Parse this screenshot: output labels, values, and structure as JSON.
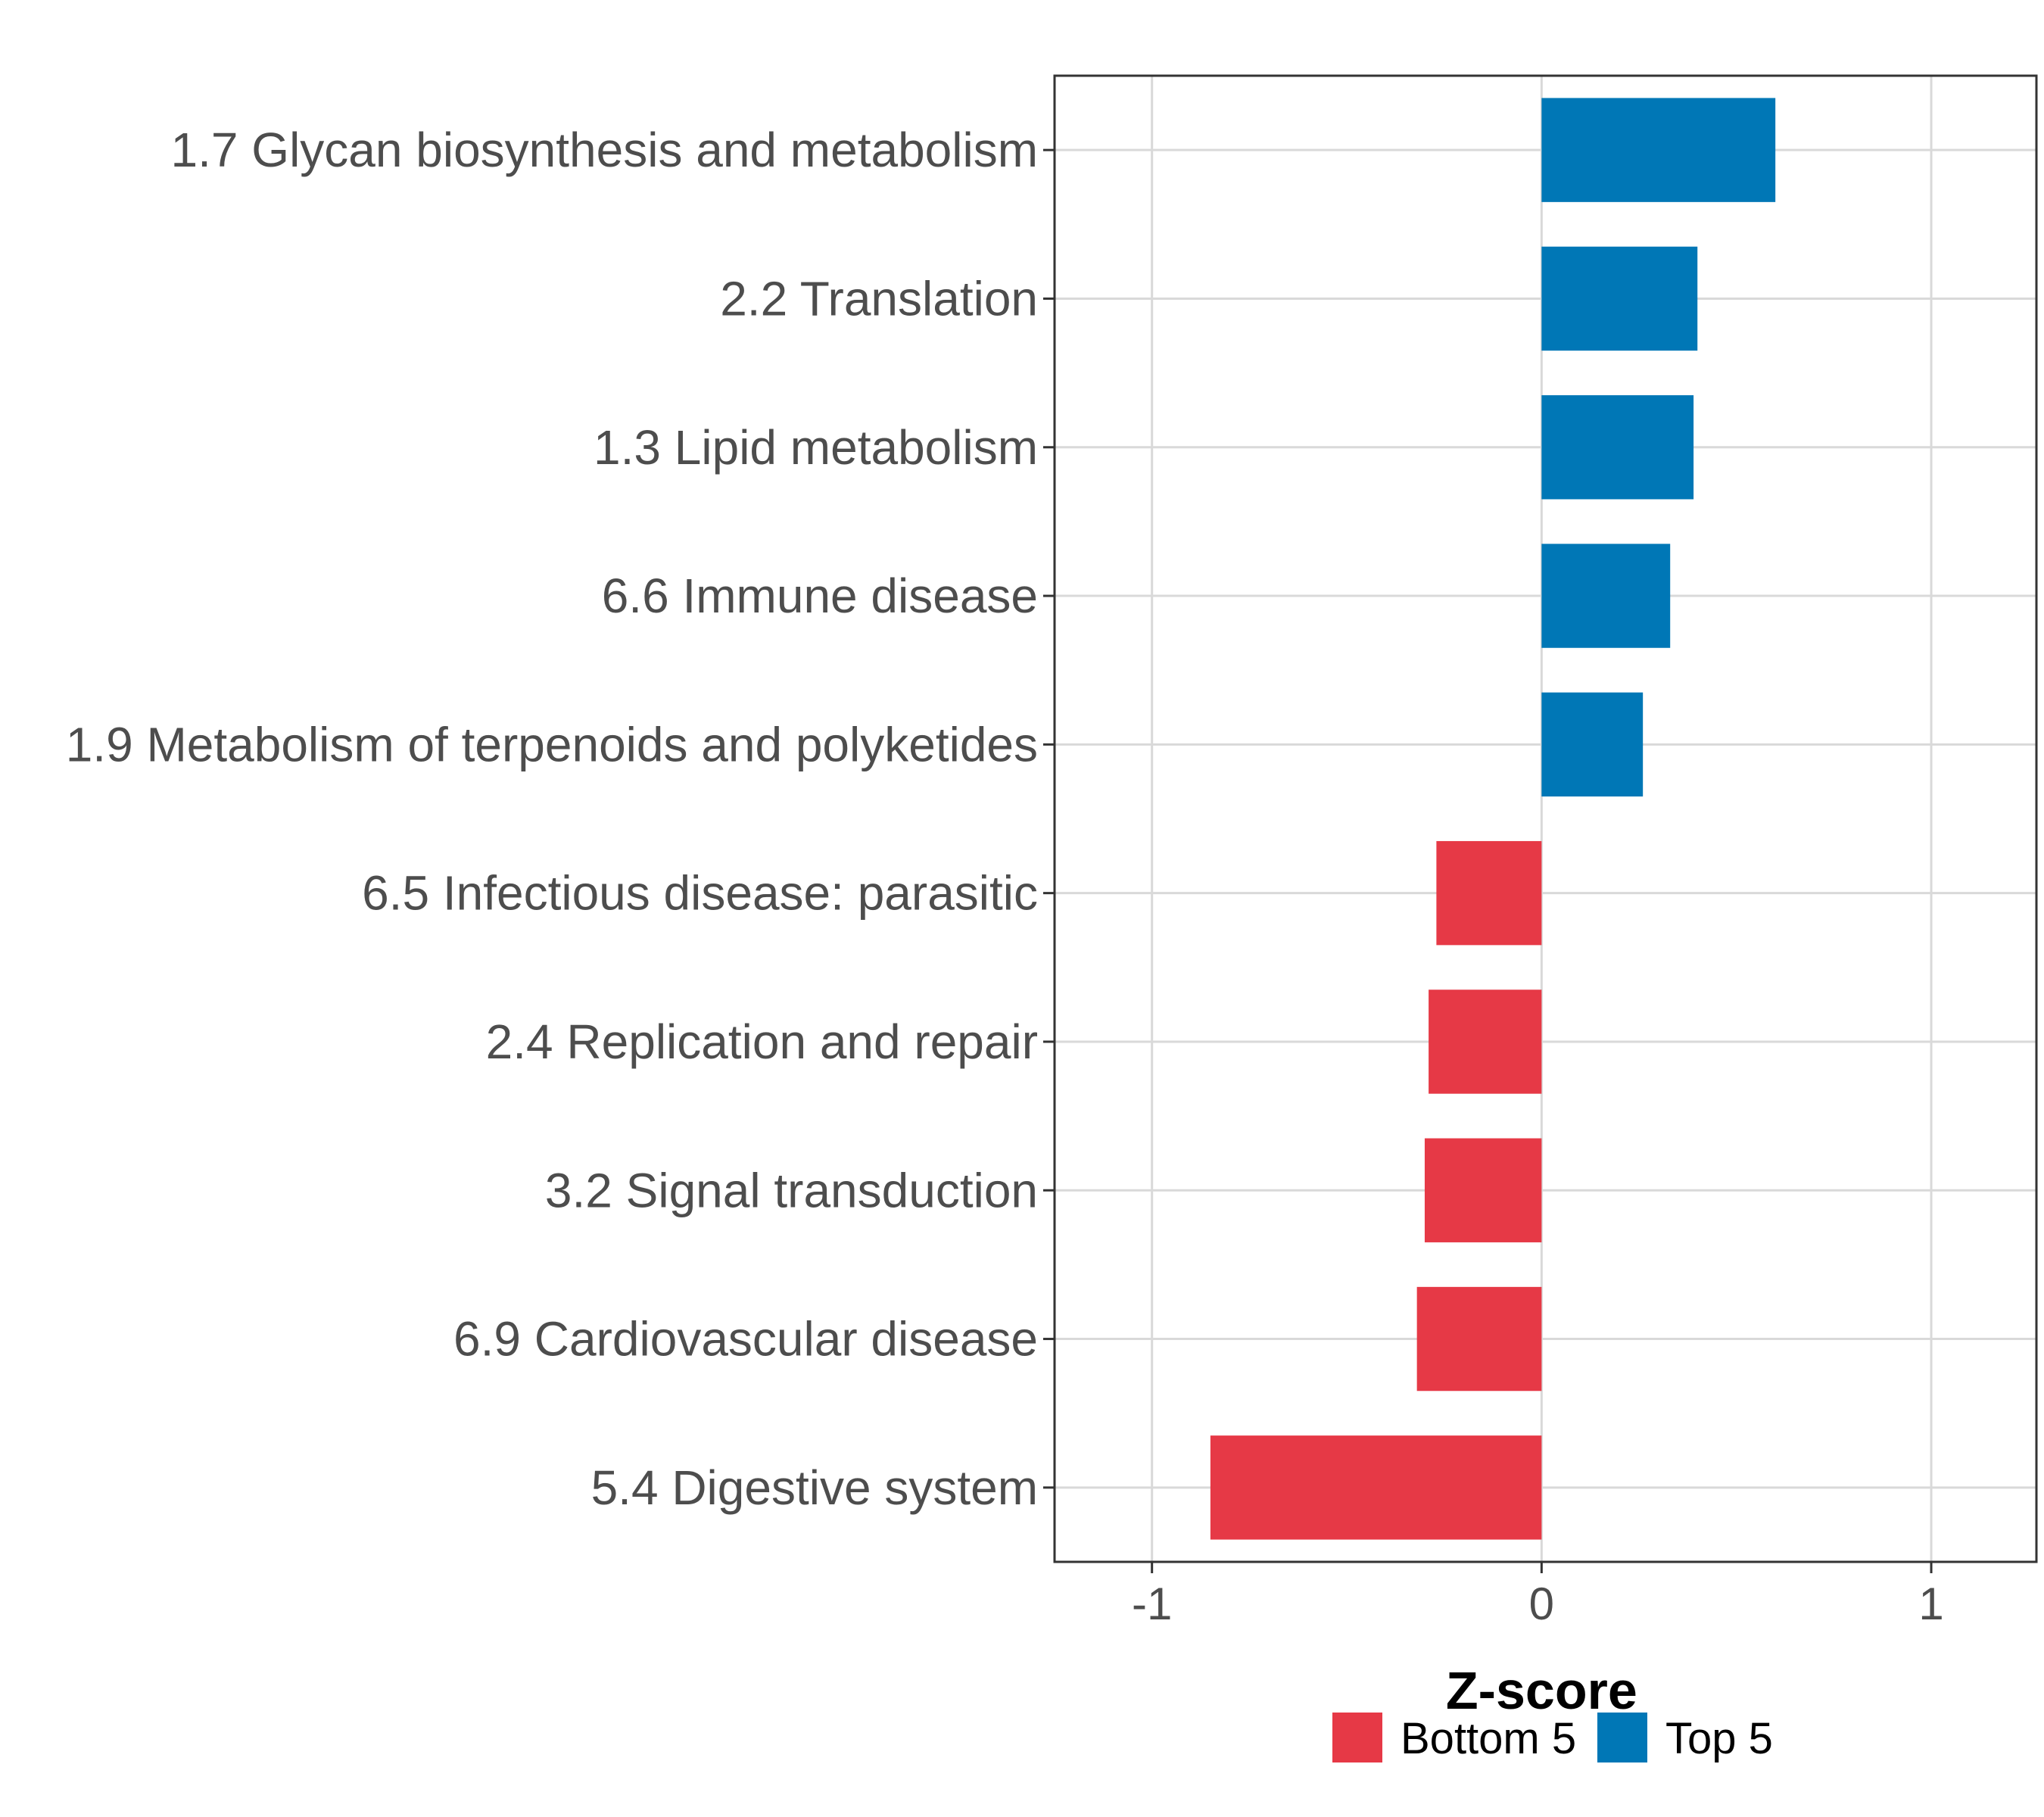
{
  "chart_data": {
    "type": "bar",
    "orientation": "horizontal",
    "xlabel": "Z-score",
    "ylabel": "",
    "xlim": [
      -1.25,
      1.27
    ],
    "xticks": [
      -1,
      0,
      1
    ],
    "xtick_labels": [
      "-1",
      "0",
      "1"
    ],
    "grid": true,
    "legend_position": "bottom",
    "categories": [
      "1.7 Glycan biosynthesis and metabolism",
      "2.2 Translation",
      "1.3 Lipid metabolism",
      "6.6 Immune disease",
      "1.9 Metabolism of terpenoids and polyketides",
      "6.5 Infectious disease: parasitic",
      "2.4 Replication and repair",
      "3.2 Signal transduction",
      "6.9 Cardiovascular disease",
      "5.4 Digestive system"
    ],
    "values": [
      0.6,
      0.4,
      0.39,
      0.33,
      0.26,
      -0.27,
      -0.29,
      -0.3,
      -0.32,
      -0.85
    ],
    "groups": [
      "Top 5",
      "Top 5",
      "Top 5",
      "Top 5",
      "Top 5",
      "Bottom 5",
      "Bottom 5",
      "Bottom 5",
      "Bottom 5",
      "Bottom 5"
    ],
    "legend": [
      {
        "name": "Bottom 5",
        "color": "#e63946"
      },
      {
        "name": "Top 5",
        "color": "#0077b6"
      }
    ]
  }
}
